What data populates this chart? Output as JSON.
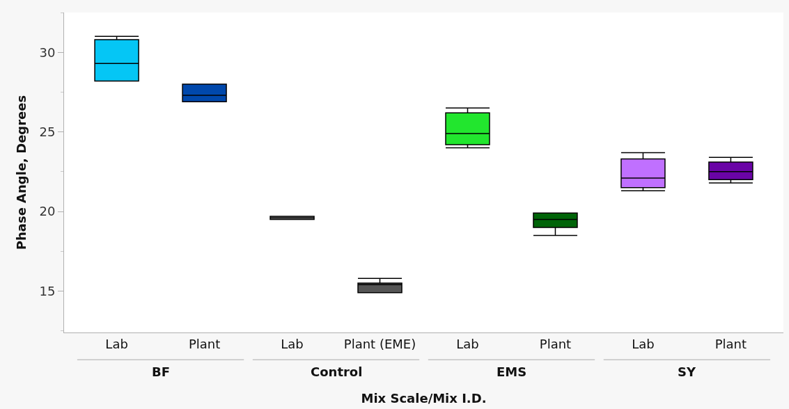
{
  "chart_data": {
    "type": "box",
    "xlabel": "Mix Scale/Mix I.D.",
    "ylabel": "Phase Angle, Degrees",
    "categories": [
      "Lab",
      "Plant",
      "Lab",
      "Plant (EME)",
      "Lab",
      "Plant",
      "Lab",
      "Plant"
    ],
    "annotations": [
      "BF",
      "Control",
      "EMS",
      "SY"
    ],
    "colors": [
      "#05c6f5",
      "#0048ac",
      "#8c8c8c",
      "#555555",
      "#22e62e",
      "#006408",
      "#c070ff",
      "#6a04a6"
    ],
    "boxes": [
      {
        "low": 28.2,
        "q1": 28.2,
        "median": 29.3,
        "q3": 30.8,
        "high": 31.0
      },
      {
        "low": 26.9,
        "q1": 26.9,
        "median": 27.3,
        "q3": 28.0,
        "high": 28.0
      },
      {
        "low": 19.5,
        "q1": 19.5,
        "median": 19.6,
        "q3": 19.7,
        "high": 19.7
      },
      {
        "low": 14.9,
        "q1": 14.9,
        "median": 15.4,
        "q3": 15.5,
        "high": 15.8
      },
      {
        "low": 24.0,
        "q1": 24.2,
        "median": 24.9,
        "q3": 26.2,
        "high": 26.5
      },
      {
        "low": 18.5,
        "q1": 19.0,
        "median": 19.5,
        "q3": 19.9,
        "high": 19.9
      },
      {
        "low": 21.3,
        "q1": 21.5,
        "median": 22.1,
        "q3": 23.3,
        "high": 23.7
      },
      {
        "low": 21.8,
        "q1": 22.0,
        "median": 22.5,
        "q3": 23.1,
        "high": 23.4
      }
    ],
    "ylim": [
      12.4,
      32.5
    ],
    "yticks": [
      15,
      20,
      25,
      30
    ],
    "grid": false
  }
}
